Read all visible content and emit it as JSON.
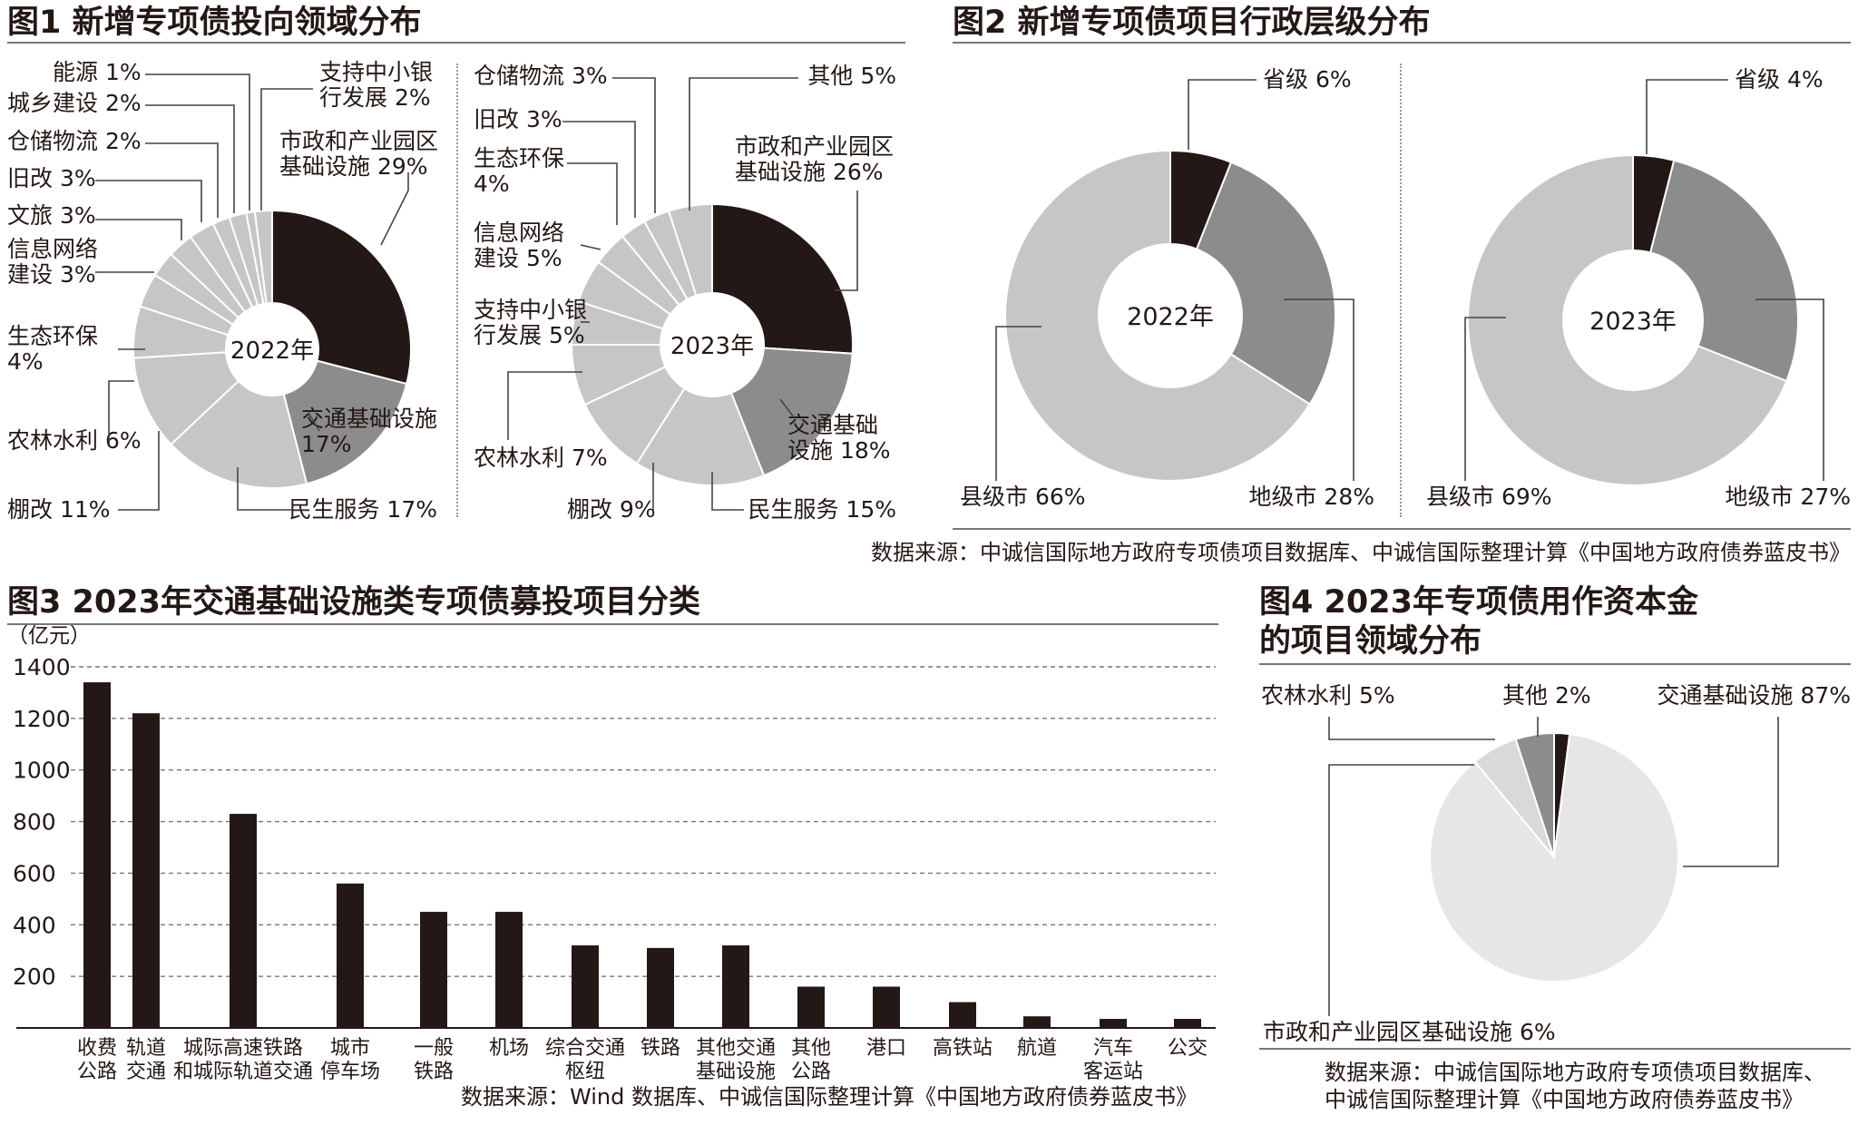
{
  "fig1": {
    "title": "图1 新增专项债投向领域分布",
    "chart_data": [
      {
        "type": "pie",
        "title": "2022年",
        "categories": [
          "市政和产业园区基础设施",
          "交通基础设施",
          "民生服务",
          "棚改",
          "农林水利",
          "生态环保",
          "信息网络建设",
          "文旅",
          "旧改",
          "仓储物流",
          "城乡建设",
          "能源",
          "支持中小银行发展"
        ],
        "values": [
          29,
          17,
          17,
          11,
          6,
          4,
          3,
          3,
          3,
          2,
          2,
          1,
          2
        ],
        "labels": [
          [
            "市政和产业园区",
            "基础设施 29%"
          ],
          [
            "交通基础设施",
            "17%"
          ],
          [
            "民生服务 17%"
          ],
          [
            "棚改 11%"
          ],
          [
            "农林水利 6%"
          ],
          [
            "生态环保",
            "4%"
          ],
          [
            "信息网络",
            "建设 3%"
          ],
          [
            "文旅 3%"
          ],
          [
            "旧改 3%"
          ],
          [
            "仓储物流 2%"
          ],
          [
            "城乡建设 2%"
          ],
          [
            "能源 1%"
          ],
          [
            "支持中小银",
            "行发展 2%"
          ]
        ]
      },
      {
        "type": "pie",
        "title": "2023年",
        "categories": [
          "市政和产业园区基础设施",
          "交通基础设施",
          "民生服务",
          "棚改",
          "农林水利",
          "支持中小银行发展",
          "信息网络建设",
          "生态环保",
          "旧改",
          "仓储物流",
          "其他"
        ],
        "values": [
          26,
          18,
          15,
          9,
          7,
          5,
          5,
          4,
          3,
          3,
          5
        ],
        "labels": [
          [
            "市政和产业园区",
            "基础设施  26%"
          ],
          [
            "交通基础",
            "设施  18%"
          ],
          [
            "民生服务 15%"
          ],
          [
            "棚改 9%"
          ],
          [
            "农林水利 7%"
          ],
          [
            "支持中小银",
            "行发展 5%"
          ],
          [
            "信息网络",
            "建设 5%"
          ],
          [
            "生态环保",
            "4%"
          ],
          [
            "旧改 3%"
          ],
          [
            "仓储物流 3%"
          ],
          [
            "其他 5%"
          ]
        ]
      }
    ]
  },
  "fig2": {
    "title": "图2 新增专项债项目行政层级分布",
    "chart_data": [
      {
        "type": "pie",
        "title": "2022年",
        "categories": [
          "省级",
          "地级市",
          "县级市"
        ],
        "values": [
          6,
          28,
          66
        ],
        "labels": [
          [
            "省级 6%"
          ],
          [
            "地级市 28%"
          ],
          [
            "县级市 66%"
          ]
        ]
      },
      {
        "type": "pie",
        "title": "2023年",
        "categories": [
          "省级",
          "地级市",
          "县级市"
        ],
        "values": [
          4,
          27,
          69
        ],
        "labels": [
          [
            "省级 4%"
          ],
          [
            "地级市 27%"
          ],
          [
            "县级市 69%"
          ]
        ]
      }
    ],
    "source": "数据来源：中诚信国际地方政府专项债项目数据库、中诚信国际整理计算《中国地方政府债券蓝皮书》"
  },
  "fig3": {
    "title": "图3 2023年交通基础设施类专项债募投项目分类",
    "unit": "（亿元）",
    "chart_data": {
      "type": "bar",
      "categories": [
        "收费公路",
        "轨道交通",
        "城际高速铁路和城际轨道交通",
        "城市停车场",
        "一般铁路",
        "机场",
        "综合交通枢纽",
        "铁路",
        "其他交通基础设施",
        "其他公路",
        "港口",
        "高铁站",
        "航道",
        "汽车客运站",
        "公交"
      ],
      "category_labels": [
        [
          "收费",
          "公路"
        ],
        [
          "轨道",
          "交通"
        ],
        [
          "城际高速铁路",
          "和城际轨道交通"
        ],
        [
          "城市",
          "停车场"
        ],
        [
          "一般",
          "铁路"
        ],
        [
          "机场"
        ],
        [
          "综合交通",
          "枢纽"
        ],
        [
          "铁路"
        ],
        [
          "其他交通",
          "基础设施"
        ],
        [
          "其他",
          "公路"
        ],
        [
          "港口"
        ],
        [
          "高铁站"
        ],
        [
          "航道"
        ],
        [
          "汽车",
          "客运站"
        ],
        [
          "公交"
        ]
      ],
      "values": [
        1340,
        1220,
        830,
        560,
        450,
        450,
        320,
        310,
        320,
        160,
        160,
        100,
        45,
        35,
        35
      ],
      "ylabel": "（亿元）",
      "ylim": [
        0,
        1400
      ],
      "yticks": [
        200,
        400,
        600,
        800,
        1000,
        1200,
        1400
      ],
      "grid": true
    },
    "source": "数据来源：Wind 数据库、中诚信国际整理计算《中国地方政府债券蓝皮书》"
  },
  "fig4": {
    "title_lines": [
      "图4 2023年专项债用作资本金",
      "的项目领域分布"
    ],
    "chart_data": {
      "type": "pie",
      "categories": [
        "其他",
        "交通基础设施",
        "市政和产业园区基础设施",
        "农林水利"
      ],
      "values": [
        2,
        87,
        6,
        5
      ],
      "labels": [
        [
          "其他 2%"
        ],
        [
          "交通基础设施 87%"
        ],
        [
          "市政和产业园区基础设施 6%"
        ],
        [
          "农林水利 5%"
        ]
      ]
    },
    "source_lines": [
      "数据来源：中诚信国际地方政府专项债项目数据库、",
      "中诚信国际整理计算《中国地方政府债券蓝皮书》"
    ]
  },
  "colors": {
    "dark": "#231815",
    "mid": "#8c8c8c",
    "light": "#c6c6c6",
    "lighter": "#d9d9d9",
    "pale": "#e6e6e6",
    "axis": "#777777"
  }
}
